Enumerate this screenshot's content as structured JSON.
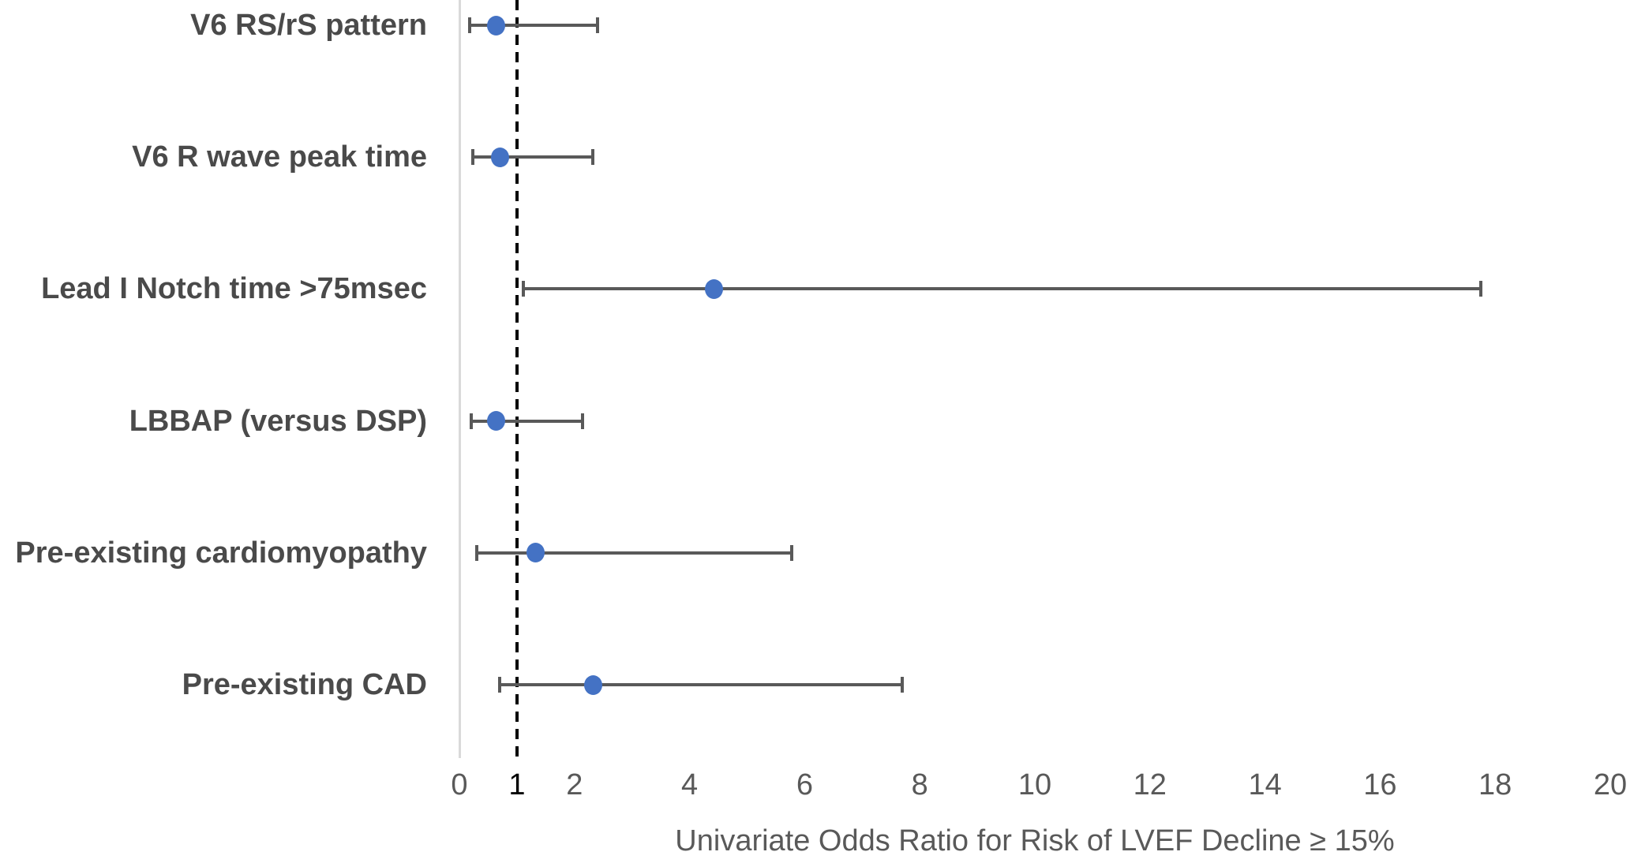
{
  "chart_data": {
    "type": "scatter",
    "subtype": "forest-plot-odds-ratios",
    "title": "",
    "xlabel": "Univariate Odds Ratio for Risk of LVEF Decline ≥ 15%",
    "ylabel": "",
    "xlim": [
      0,
      20
    ],
    "x_ticks": [
      0,
      1,
      2,
      4,
      6,
      8,
      10,
      12,
      14,
      16,
      18,
      20
    ],
    "emphasized_tick": 1,
    "reference_line": {
      "x": 1,
      "style": "dashed",
      "color": "#000000"
    },
    "grid": "off",
    "legend": "none",
    "categories": [
      "V6 RS/rS pattern",
      "V6 R wave peak time",
      "Lead I Notch time >75msec",
      "LBBAP (versus DSP)",
      "Pre-existing cardiomyopathy",
      "Pre-existing CAD"
    ],
    "points": [
      {
        "category": "V6 RS/rS pattern",
        "or": 0.64,
        "ci_low": 0.18,
        "ci_high": 2.4
      },
      {
        "category": "V6 R wave peak time",
        "or": 0.7,
        "ci_low": 0.23,
        "ci_high": 2.32
      },
      {
        "category": "Lead I Notch time >75msec",
        "or": 4.43,
        "ci_low": 1.11,
        "ci_high": 17.75
      },
      {
        "category": "LBBAP (versus DSP)",
        "or": 0.64,
        "ci_low": 0.21,
        "ci_high": 2.14
      },
      {
        "category": "Pre-existing cardiomyopathy",
        "or": 1.32,
        "ci_low": 0.3,
        "ci_high": 5.77
      },
      {
        "category": "Pre-existing CAD",
        "or": 2.33,
        "ci_low": 0.7,
        "ci_high": 7.7
      }
    ],
    "colors": {
      "marker": "#4472C4",
      "error_bar": "#595959",
      "category_label": "#4a4a4a",
      "tick_label": "#595959",
      "emphasized_tick_label": "#000000",
      "axis_title": "#595959",
      "axis_line": "#d9d9d9",
      "reference_line": "#000000",
      "background": "#ffffff"
    }
  }
}
